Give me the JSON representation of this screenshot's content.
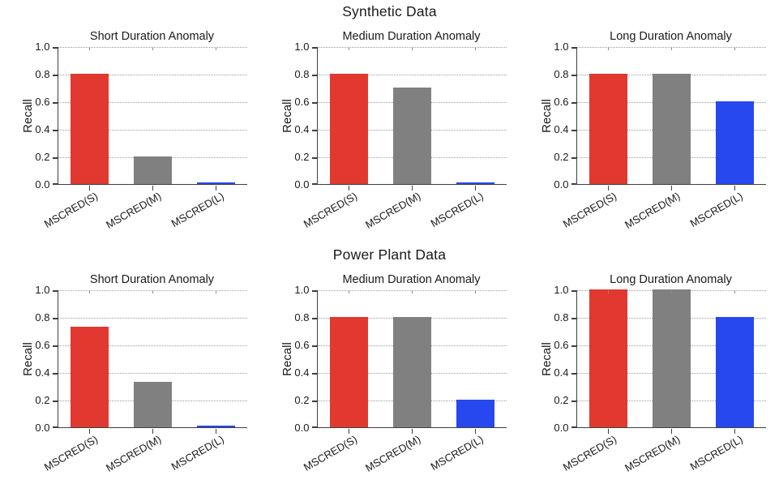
{
  "chart_data": {
    "type": "bar",
    "ylabel": "Recall",
    "ylim": [
      0,
      1.0
    ],
    "yticks": [
      "1.0",
      "0.8",
      "0.6",
      "0.4",
      "0.2",
      "0.0"
    ],
    "grid": "horizontal dotted lines at 0.2 intervals",
    "legend": "none",
    "categories": [
      "MSCRED(S)",
      "MSCRED(M)",
      "MSCRED(L)"
    ],
    "bar_colors": [
      "#e1392f",
      "#808080",
      "#2848ef"
    ],
    "figures": [
      {
        "suptitle": "Synthetic Data",
        "subplots": [
          {
            "title": "Short Duration Anomaly",
            "values": [
              0.8,
              0.2,
              0.005
            ]
          },
          {
            "title": "Medium Duration Anomaly",
            "values": [
              0.8,
              0.7,
              0.005
            ]
          },
          {
            "title": "Long Duration Anomaly",
            "values": [
              0.8,
              0.8,
              0.6
            ]
          }
        ]
      },
      {
        "suptitle": "Power Plant Data",
        "subplots": [
          {
            "title": "Short Duration Anomaly",
            "values": [
              0.73,
              0.33,
              0.005
            ]
          },
          {
            "title": "Medium Duration Anomaly",
            "values": [
              0.8,
              0.8,
              0.2
            ]
          },
          {
            "title": "Long Duration Anomaly",
            "values": [
              1.0,
              1.0,
              0.8
            ]
          }
        ]
      }
    ]
  }
}
